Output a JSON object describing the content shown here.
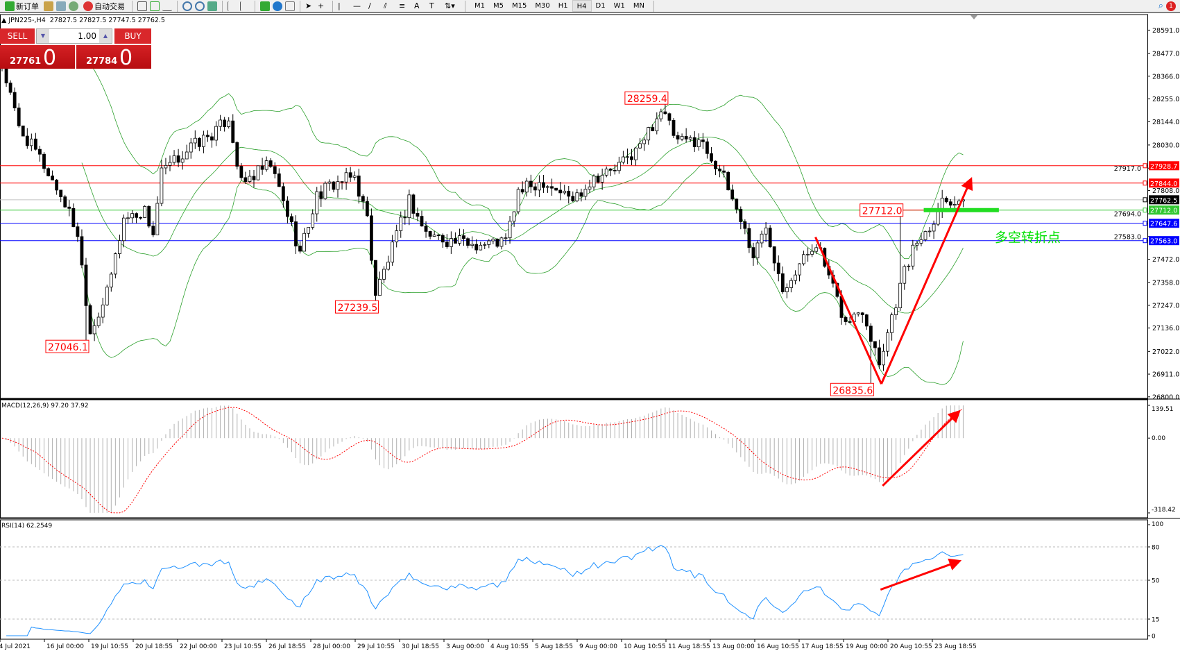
{
  "toolbar": {
    "new_order": "新订单",
    "auto_trading": "自动交易",
    "timeframes": [
      "M1",
      "M5",
      "M15",
      "M30",
      "H1",
      "H4",
      "D1",
      "W1",
      "MN"
    ],
    "active_timeframe": "H4",
    "notification_count": "1"
  },
  "header": {
    "symbol": "JPN225-,H4",
    "ohlc": "27827.5 27827.5 27747.5 27762.5"
  },
  "trade_panel": {
    "sell": "SELL",
    "buy": "BUY",
    "lot": "1.00",
    "bid_main": "27761",
    "bid_big": "0",
    "ask_main": "27784",
    "ask_big": "0"
  },
  "price_axis": {
    "ticks": [
      "28591.0",
      "28477.0",
      "28366.0",
      "28255.0",
      "28144.0",
      "28030.0",
      "27917.0",
      "27808.0",
      "27694.0",
      "27583.0",
      "27472.0",
      "27358.0",
      "27247.0",
      "27136.0",
      "27022.0",
      "26911.0",
      "26800.0"
    ]
  },
  "levels": [
    {
      "price": 27928.7,
      "label": "27928.7",
      "color": "#ff0000"
    },
    {
      "price": 27844.0,
      "label": "27844.0",
      "color": "#ff0000"
    },
    {
      "price": 27762.5,
      "label": "27762.5",
      "color": "#000000",
      "line": "#c0c0c0"
    },
    {
      "price": 27712.0,
      "label": "27712.0",
      "color": "#32c832"
    },
    {
      "price": 27647.6,
      "label": "27647.6",
      "color": "#0000ff"
    },
    {
      "price": 27563.0,
      "label": "27563.0",
      "color": "#0000ff"
    }
  ],
  "annotations": {
    "price_labels": [
      {
        "text": "28259.4",
        "bar": 158,
        "price": 28259.4
      },
      {
        "text": "27239.5",
        "bar": 89,
        "price": 27239.5
      },
      {
        "text": "27046.1",
        "bar": 20,
        "price": 27046.1
      },
      {
        "text": "26835.6",
        "bar": 207,
        "price": 26835.6
      },
      {
        "text": "27712.0",
        "bar": 214,
        "price": 27712.0
      }
    ],
    "turning_point_text": "多空转折点",
    "turning_point_color": "#00e000",
    "arrow_color": "#ff0000"
  },
  "macd": {
    "label": "MACD(12,26,9) 97.20 37.92",
    "axis": [
      "139.51",
      "0.00",
      "-318.42"
    ]
  },
  "rsi": {
    "label": "RSI(14) 62.2549",
    "axis": [
      "100",
      "80",
      "50",
      "15",
      "0"
    ]
  },
  "time_axis": [
    "14 Jul 2021",
    "16 Jul 00:00",
    "19 Jul 10:55",
    "20 Jul 18:55",
    "22 Jul 00:00",
    "23 Jul 10:55",
    "26 Jul 18:55",
    "28 Jul 00:00",
    "29 Jul 10:55",
    "30 Jul 18:55",
    "3 Aug 00:00",
    "4 Aug 10:55",
    "5 Aug 18:55",
    "9 Aug 00:00",
    "10 Aug 10:55",
    "11 Aug 18:55",
    "13 Aug 00:00",
    "16 Aug 10:55",
    "17 Aug 18:55",
    "19 Aug 00:00",
    "20 Aug 10:55",
    "23 Aug 18:55"
  ],
  "chart_data": {
    "type": "candlestick",
    "symbol": "JPN225-",
    "timeframe": "H4",
    "ylim": [
      26800.0,
      28591.0
    ],
    "close_path_bar_price": [
      [
        0,
        28420
      ],
      [
        4,
        28113
      ],
      [
        9,
        27966
      ],
      [
        15,
        27746
      ],
      [
        18,
        27598
      ],
      [
        21,
        27120
      ],
      [
        25,
        27304
      ],
      [
        29,
        27672
      ],
      [
        34,
        27708
      ],
      [
        36,
        27598
      ],
      [
        38,
        27892
      ],
      [
        45,
        28021
      ],
      [
        51,
        28095
      ],
      [
        54,
        28168
      ],
      [
        57,
        27837
      ],
      [
        62,
        27910
      ],
      [
        64,
        27930
      ],
      [
        69,
        27635
      ],
      [
        71,
        27506
      ],
      [
        75,
        27782
      ],
      [
        79,
        27840
      ],
      [
        84,
        27874
      ],
      [
        87,
        27672
      ],
      [
        89,
        27304
      ],
      [
        93,
        27524
      ],
      [
        97,
        27764
      ],
      [
        101,
        27598
      ],
      [
        107,
        27561
      ],
      [
        114,
        27545
      ],
      [
        120,
        27561
      ],
      [
        123,
        27800
      ],
      [
        129,
        27856
      ],
      [
        136,
        27764
      ],
      [
        141,
        27874
      ],
      [
        146,
        27910
      ],
      [
        152,
        28021
      ],
      [
        157,
        28205
      ],
      [
        161,
        28040
      ],
      [
        166,
        28060
      ],
      [
        171,
        27910
      ],
      [
        176,
        27672
      ],
      [
        179,
        27488
      ],
      [
        182,
        27635
      ],
      [
        186,
        27341
      ],
      [
        189,
        27415
      ],
      [
        194,
        27561
      ],
      [
        197,
        27378
      ],
      [
        201,
        27157
      ],
      [
        205,
        27230
      ],
      [
        209,
        26973
      ],
      [
        212,
        27194
      ],
      [
        215,
        27415
      ],
      [
        218,
        27561
      ],
      [
        221,
        27635
      ],
      [
        224,
        27764
      ],
      [
        229,
        27762.5
      ]
    ],
    "bollinger": {
      "period": 20,
      "deviation": 2
    },
    "macd": {
      "fast": 12,
      "slow": 26,
      "signal": 9,
      "ylim": [
        -318.42,
        139.51
      ]
    },
    "rsi": {
      "period": 14,
      "levels": [
        80,
        50,
        15
      ],
      "ylim": [
        0,
        100
      ]
    },
    "arrows": {
      "price": [
        [
          193.8,
          27580,
          209.5,
          26863
        ],
        [
          209.5,
          26863,
          230.7,
          27855
        ]
      ],
      "macd": [
        [
          209.8,
          -203.1,
          227.7,
          107.5
        ]
      ],
      "rsi": [
        [
          209.3,
          41.5,
          227.7,
          66.7
        ]
      ]
    },
    "support_bar": {
      "price": 27712.0,
      "from_bar": 219.6,
      "to_bar": 237.5
    },
    "turning_point": {
      "bar": 236.5,
      "price": 27580
    }
  }
}
